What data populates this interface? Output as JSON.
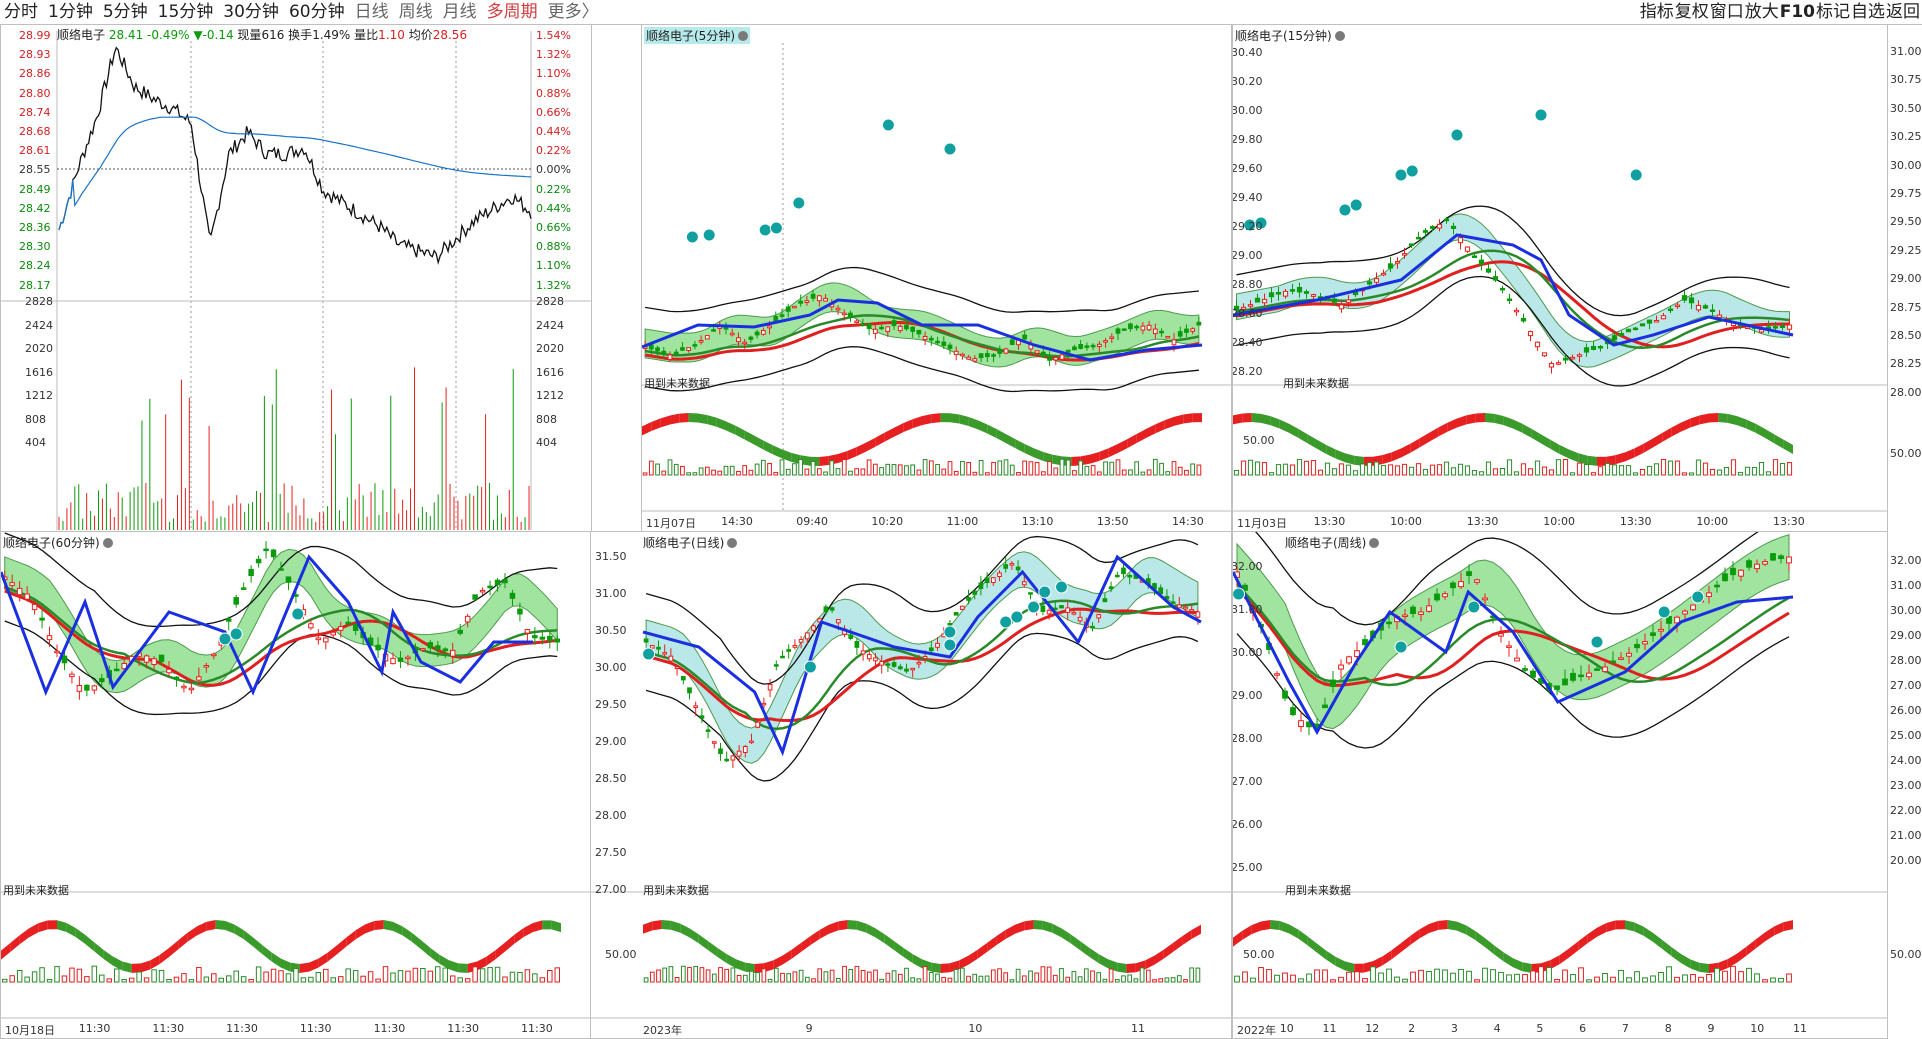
{
  "toolbar": {
    "periods": [
      "分时",
      "1分钟",
      "5分钟",
      "15分钟",
      "30分钟",
      "60分钟",
      "日线",
      "周线",
      "月线",
      "多周期",
      "更多〉"
    ],
    "active_period": "多周期",
    "tools": [
      "指标",
      "复权",
      "窗口",
      "放大",
      "F10",
      "标记",
      "自选",
      "返回"
    ]
  },
  "intraday": {
    "title": "顺络电子",
    "price": "28.41",
    "change_pct": "-0.49%",
    "change": "▼-0.14",
    "volume_label": "现量",
    "volume": "616",
    "turnover_label": "换手",
    "turnover": "1.49%",
    "ratio_label": "量比",
    "ratio": "1.10",
    "avg_label": "均价",
    "avg": "28.56",
    "price_ticks": [
      "28.99",
      "28.93",
      "28.86",
      "28.80",
      "28.74",
      "28.68",
      "28.61",
      "28.55",
      "28.49",
      "28.42",
      "28.36",
      "28.30",
      "28.24",
      "28.17"
    ],
    "pct_ticks": [
      "1.54%",
      "1.32%",
      "1.10%",
      "0.88%",
      "0.66%",
      "0.44%",
      "0.22%",
      "0.00%",
      "0.22%",
      "0.44%",
      "0.66%",
      "0.88%",
      "1.10%",
      "1.32%"
    ],
    "vol_ticks": [
      "2828",
      "2424",
      "2020",
      "1616",
      "1212",
      "808",
      "404"
    ]
  },
  "panels": {
    "p5": {
      "title": "顺络电子(5分钟)",
      "future": "用到未来数据",
      "x_labels": [
        "11月07日",
        "14:30",
        "09:40",
        "10:20",
        "11:00",
        "13:10",
        "13:50",
        "14:30"
      ]
    },
    "p15": {
      "title": "顺络电子(15分钟)",
      "future": "用到未来数据",
      "y_ticks": [
        "30.40",
        "30.20",
        "30.00",
        "29.80",
        "29.60",
        "29.40",
        "29.20",
        "29.00",
        "28.80",
        "28.60",
        "28.40",
        "28.20"
      ],
      "lower_tick": "50.00",
      "x_labels": [
        "11月03日",
        "13:30",
        "10:00",
        "13:30",
        "10:00",
        "13:30",
        "10:00",
        "13:30"
      ],
      "right_ticks": [
        "31.00",
        "30.75",
        "30.50",
        "30.25",
        "30.00",
        "29.75",
        "29.50",
        "29.25",
        "29.00",
        "28.75",
        "28.50",
        "28.25",
        "28.00"
      ],
      "right_lower": "50.00"
    },
    "p60": {
      "title": "顺络电子(60分钟)",
      "future": "用到未来数据",
      "x_labels": [
        "10月18日",
        "11:30",
        "11:30",
        "11:30",
        "11:30",
        "11:30",
        "11:30",
        "11:30"
      ]
    },
    "pday": {
      "title": "顺络电子(日线)",
      "future": "用到未来数据",
      "y_ticks": [
        "31.50",
        "31.00",
        "30.50",
        "30.00",
        "29.50",
        "29.00",
        "28.50",
        "28.00",
        "27.50",
        "27.00"
      ],
      "lower_tick": "50.00",
      "x_labels": [
        "2023年",
        "9",
        "10",
        "11"
      ]
    },
    "pweek": {
      "title": "顺络电子(周线)",
      "future": "用到未来数据",
      "y_ticks": [
        "32.00",
        "31.00",
        "30.00",
        "29.00",
        "28.00",
        "27.00",
        "26.00",
        "25.00"
      ],
      "lower_tick": "50.00",
      "x_labels": [
        "2022年",
        "10",
        "11",
        "12",
        "2",
        "3",
        "4",
        "5",
        "6",
        "7",
        "8",
        "9",
        "10",
        "11"
      ],
      "right_ticks": [
        "32.00",
        "31.00",
        "30.00",
        "29.00",
        "28.00",
        "27.00",
        "26.00",
        "25.00",
        "24.00",
        "23.00",
        "22.00",
        "21.00",
        "20.00"
      ],
      "right_lower": "50.00"
    }
  },
  "colors": {
    "up": "#e8201c",
    "down": "#0a9a0a",
    "ma_blue": "#1a2fe0",
    "avg_line": "#1a73c8",
    "band": "#aee3e3",
    "cloud": "#90e090"
  }
}
